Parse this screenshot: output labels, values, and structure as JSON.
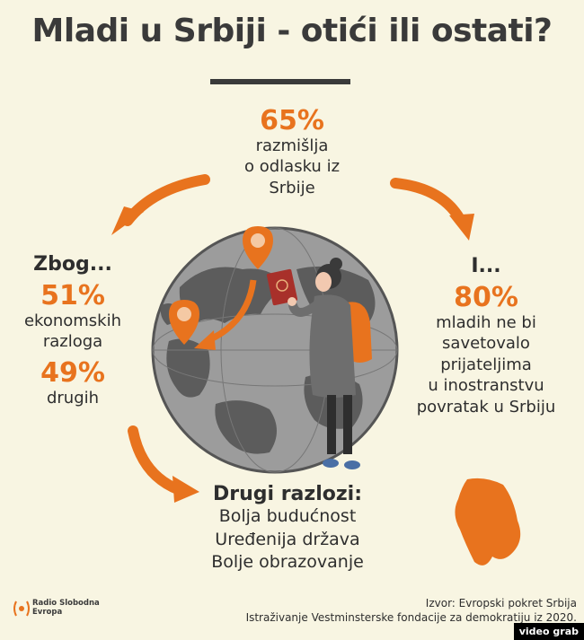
{
  "title": "Mladi u Srbiji - otići ili ostati?",
  "top": {
    "percent": "65%",
    "lines": [
      "razmišlja",
      "o odlasku iz",
      "Srbije"
    ]
  },
  "left": {
    "heading": "Zbog...",
    "stat1_percent": "51%",
    "stat1_lines": [
      "ekonomskih",
      "razloga"
    ],
    "stat2_percent": "49%",
    "stat2_lines": [
      "drugih"
    ]
  },
  "right": {
    "heading": "I...",
    "percent": "80%",
    "lines": [
      "mladih ne bi",
      "savetovalo",
      "prijateljima",
      "u inostranstvu",
      "povratak u Srbiju"
    ]
  },
  "bottom": {
    "heading": "Drugi razlozi:",
    "items": [
      "Bolja budućnost",
      "Uređenija država",
      "Bolje obrazovanje"
    ]
  },
  "source": {
    "line1": "Izvor: Evropski pokret Srbija",
    "line2": "Istraživanje Vestminsterske fondacije za demokratiju iz 2020."
  },
  "logo": {
    "line1": "Radio Slobodna",
    "line2": "Evropa"
  },
  "watermark": "video grab",
  "colors": {
    "accent": "#e8731e",
    "background": "#f8f5e2",
    "globe": "#9c9c9c",
    "dark": "#3a3a3a"
  }
}
